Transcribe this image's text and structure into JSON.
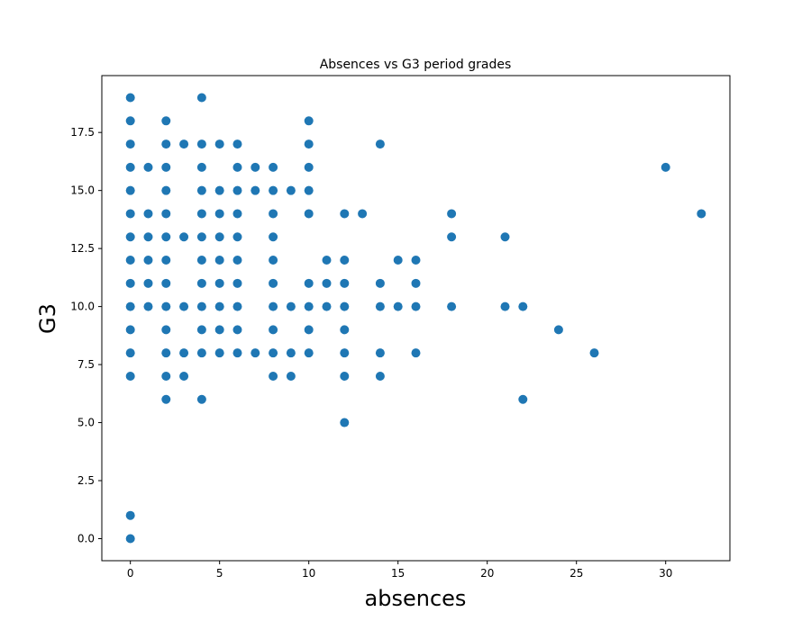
{
  "chart_data": {
    "type": "scatter",
    "title": "Absences vs G3 period grades",
    "xlabel": "absences",
    "ylabel": "G3",
    "xlim": [
      -1.6,
      33.6
    ],
    "ylim": [
      -0.95,
      19.95
    ],
    "x_ticks": [
      0,
      5,
      10,
      15,
      20,
      25,
      30
    ],
    "y_ticks": [
      0.0,
      2.5,
      5.0,
      7.5,
      10.0,
      12.5,
      15.0,
      17.5
    ],
    "y_tick_labels": [
      "0.0",
      "2.5",
      "5.0",
      "7.5",
      "10.0",
      "12.5",
      "15.0",
      "17.5"
    ],
    "grid": false,
    "legend": false,
    "marker_color": "#1f77b4",
    "series": [
      {
        "points": [
          [
            0,
            0
          ],
          [
            0,
            1
          ],
          [
            0,
            7
          ],
          [
            0,
            8
          ],
          [
            0,
            9
          ],
          [
            0,
            10
          ],
          [
            0,
            11
          ],
          [
            0,
            12
          ],
          [
            0,
            13
          ],
          [
            0,
            14
          ],
          [
            0,
            15
          ],
          [
            0,
            16
          ],
          [
            0,
            17
          ],
          [
            0,
            18
          ],
          [
            0,
            19
          ],
          [
            1,
            10
          ],
          [
            1,
            11
          ],
          [
            1,
            12
          ],
          [
            1,
            13
          ],
          [
            1,
            14
          ],
          [
            1,
            16
          ],
          [
            2,
            6
          ],
          [
            2,
            7
          ],
          [
            2,
            8
          ],
          [
            2,
            9
          ],
          [
            2,
            10
          ],
          [
            2,
            11
          ],
          [
            2,
            12
          ],
          [
            2,
            13
          ],
          [
            2,
            14
          ],
          [
            2,
            15
          ],
          [
            2,
            16
          ],
          [
            2,
            17
          ],
          [
            2,
            18
          ],
          [
            3,
            7
          ],
          [
            3,
            8
          ],
          [
            3,
            10
          ],
          [
            3,
            13
          ],
          [
            3,
            17
          ],
          [
            4,
            6
          ],
          [
            4,
            8
          ],
          [
            4,
            9
          ],
          [
            4,
            10
          ],
          [
            4,
            11
          ],
          [
            4,
            12
          ],
          [
            4,
            13
          ],
          [
            4,
            14
          ],
          [
            4,
            15
          ],
          [
            4,
            16
          ],
          [
            4,
            17
          ],
          [
            4,
            19
          ],
          [
            5,
            8
          ],
          [
            5,
            9
          ],
          [
            5,
            10
          ],
          [
            5,
            11
          ],
          [
            5,
            12
          ],
          [
            5,
            13
          ],
          [
            5,
            14
          ],
          [
            5,
            15
          ],
          [
            5,
            17
          ],
          [
            6,
            8
          ],
          [
            6,
            9
          ],
          [
            6,
            10
          ],
          [
            6,
            11
          ],
          [
            6,
            12
          ],
          [
            6,
            13
          ],
          [
            6,
            14
          ],
          [
            6,
            15
          ],
          [
            6,
            16
          ],
          [
            6,
            17
          ],
          [
            7,
            8
          ],
          [
            7,
            15
          ],
          [
            7,
            16
          ],
          [
            8,
            7
          ],
          [
            8,
            8
          ],
          [
            8,
            9
          ],
          [
            8,
            10
          ],
          [
            8,
            11
          ],
          [
            8,
            12
          ],
          [
            8,
            13
          ],
          [
            8,
            14
          ],
          [
            8,
            15
          ],
          [
            8,
            16
          ],
          [
            9,
            7
          ],
          [
            9,
            8
          ],
          [
            9,
            10
          ],
          [
            9,
            15
          ],
          [
            10,
            8
          ],
          [
            10,
            9
          ],
          [
            10,
            10
          ],
          [
            10,
            11
          ],
          [
            10,
            14
          ],
          [
            10,
            15
          ],
          [
            10,
            16
          ],
          [
            10,
            17
          ],
          [
            10,
            18
          ],
          [
            11,
            10
          ],
          [
            11,
            11
          ],
          [
            11,
            12
          ],
          [
            12,
            5
          ],
          [
            12,
            7
          ],
          [
            12,
            8
          ],
          [
            12,
            9
          ],
          [
            12,
            10
          ],
          [
            12,
            11
          ],
          [
            12,
            12
          ],
          [
            12,
            14
          ],
          [
            13,
            14
          ],
          [
            14,
            7
          ],
          [
            14,
            8
          ],
          [
            14,
            10
          ],
          [
            14,
            11
          ],
          [
            14,
            17
          ],
          [
            15,
            10
          ],
          [
            15,
            12
          ],
          [
            16,
            8
          ],
          [
            16,
            10
          ],
          [
            16,
            11
          ],
          [
            16,
            12
          ],
          [
            18,
            10
          ],
          [
            18,
            13
          ],
          [
            18,
            14
          ],
          [
            21,
            10
          ],
          [
            21,
            13
          ],
          [
            22,
            6
          ],
          [
            22,
            10
          ],
          [
            24,
            9
          ],
          [
            26,
            8
          ],
          [
            30,
            16
          ],
          [
            32,
            14
          ]
        ]
      }
    ]
  }
}
